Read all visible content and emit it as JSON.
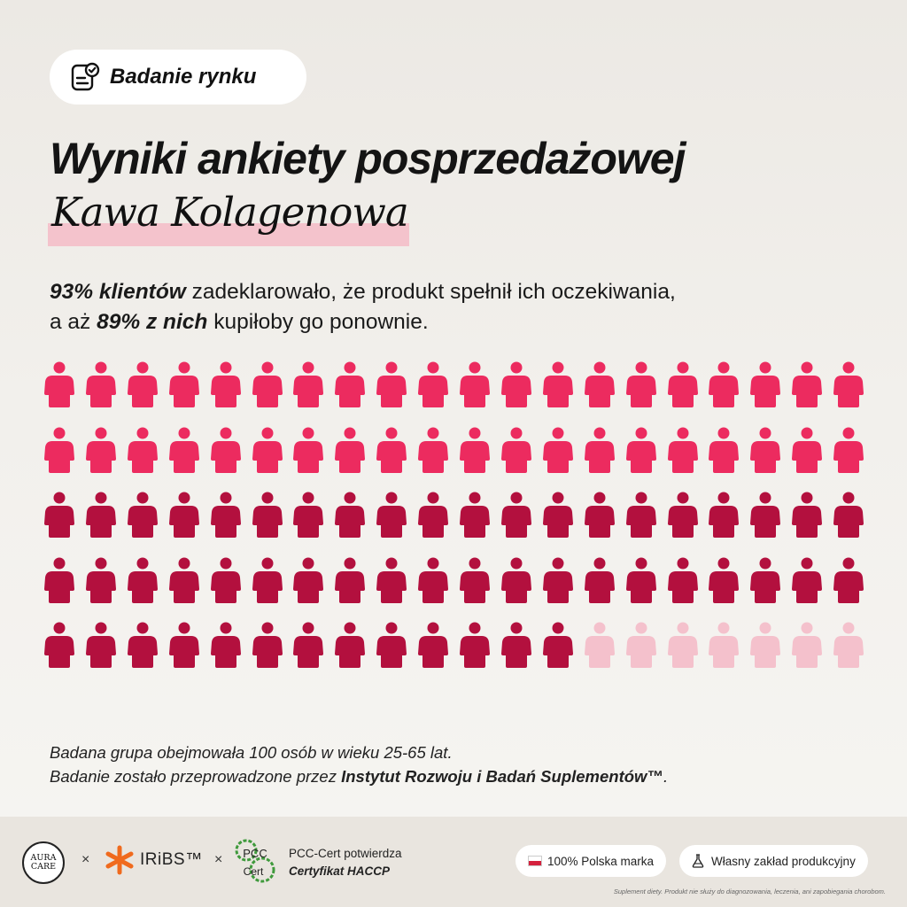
{
  "badge": {
    "icon": "survey-checklist-icon",
    "label": "Badanie rynku"
  },
  "title": "Wyniki ankiety posprzedażowej",
  "subtitle": "Kawa Kolagenowa",
  "lead": {
    "bold1": "93% klientów",
    "text1": " zadeklarowało, że produkt spełnił ich oczekiwania,",
    "text2": "a aż ",
    "bold2": "89% z nich",
    "text3": " kupiłoby go ponownie."
  },
  "chart_data": {
    "type": "pictogram",
    "total": 100,
    "columns": 20,
    "rows": 5,
    "groups": [
      {
        "count": 40,
        "color": "#ec2b5f"
      },
      {
        "count": 53,
        "color": "#b3103e"
      },
      {
        "count": 7,
        "color": "#f4c1cc"
      }
    ]
  },
  "note": {
    "line1": "Badana grupa obejmowała 100 osób w wieku 25-65 lat.",
    "line2_prefix": "Badanie zostało przeprowadzone przez ",
    "line2_bold": "Instytut Rozwoju i Badań Suplementów™",
    "line2_suffix": "."
  },
  "footer": {
    "aura_line1": "AURA",
    "aura_line2": "CARE",
    "times": "×",
    "iribs_label": "IRiBS™",
    "pcc_logo_top": "PCC",
    "pcc_logo_bottom": "Cert",
    "pcc_line1": "PCC-Cert potwierdza",
    "pcc_line2": "Certyfikat HACCP",
    "pill1": "100% Polska marka",
    "pill2": "Własny zakład produkcyjny",
    "disclaimer": "Suplement diety. Produkt nie służy do diagnozowania, leczenia, ani zapobiegania chorobom."
  },
  "colors": {
    "accent": "#ec2b5f",
    "dark": "#b3103e",
    "light": "#f4c1cc",
    "highlight": "#f4c3cc"
  }
}
